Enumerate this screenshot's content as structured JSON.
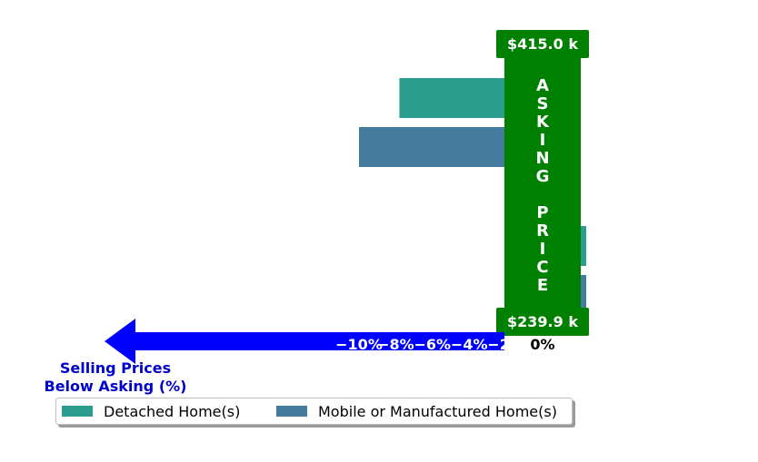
{
  "chart_data": {
    "type": "bar",
    "orientation": "horizontal",
    "categories": [
      "",
      ""
    ],
    "series": [
      {
        "name": "Detached Home(s)",
        "color": "#2a9d8f",
        "values": [
          -7.8,
          0.0
        ]
      },
      {
        "name": "Mobile or Manufactured Home(s)",
        "color": "#457b9d",
        "values": [
          -10.0,
          0.0
        ]
      }
    ],
    "xlim": [
      -11,
      0
    ],
    "xticks": [
      -10,
      -8,
      -6,
      -4,
      -2,
      0
    ],
    "xtick_labels": [
      "−10%",
      "−8%",
      "−6%",
      "−4%",
      "−2%",
      "0%"
    ],
    "xlabel": "Selling Prices\nBelow Asking (%)",
    "asking_price_label": "ASKING PRICE",
    "asking_price_high": "$415.0 k",
    "asking_price_low": "$239.9 k",
    "colors": {
      "asking": "#008000",
      "axis_arrow": "#0000ff",
      "xlabel": "#0000cd"
    },
    "legend": {
      "placement": "bottom",
      "columns": 2
    }
  }
}
